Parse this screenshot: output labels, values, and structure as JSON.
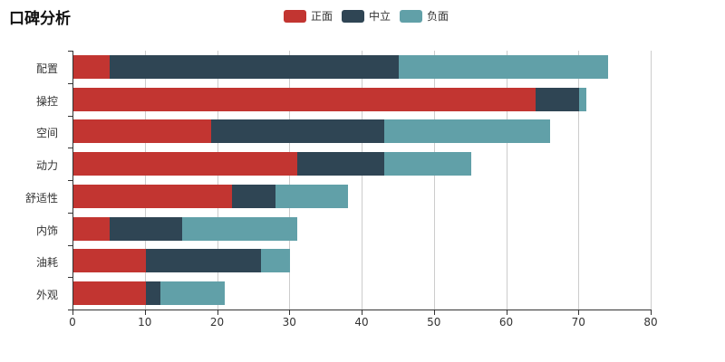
{
  "title": "口碑分析",
  "legend": {
    "items": [
      {
        "label": "正面",
        "color": "#c23531"
      },
      {
        "label": "中立",
        "color": "#2f4554"
      },
      {
        "label": "负面",
        "color": "#61a0a8"
      }
    ]
  },
  "chart_data": {
    "type": "bar",
    "orientation": "horizontal",
    "stacked": true,
    "title": "口碑分析",
    "categories": [
      "配置",
      "操控",
      "空间",
      "动力",
      "舒适性",
      "内饰",
      "油耗",
      "外观"
    ],
    "series": [
      {
        "name": "正面",
        "color": "#c23531",
        "values": [
          5,
          64,
          19,
          31,
          22,
          5,
          10,
          10
        ]
      },
      {
        "name": "中立",
        "color": "#2f4554",
        "values": [
          40,
          6,
          24,
          12,
          6,
          10,
          16,
          2
        ]
      },
      {
        "name": "负面",
        "color": "#61a0a8",
        "values": [
          29,
          1,
          23,
          12,
          10,
          16,
          4,
          9
        ]
      }
    ],
    "totals": [
      74,
      71,
      66,
      55,
      38,
      31,
      30,
      21
    ],
    "xlim": [
      0,
      80
    ],
    "x_ticks": [
      0,
      10,
      20,
      30,
      40,
      50,
      60,
      70,
      80
    ],
    "xlabel": "",
    "ylabel": "",
    "grid": true,
    "legend_position": "top",
    "axis_color": "#333333",
    "gridline_color": "#cccccc"
  }
}
